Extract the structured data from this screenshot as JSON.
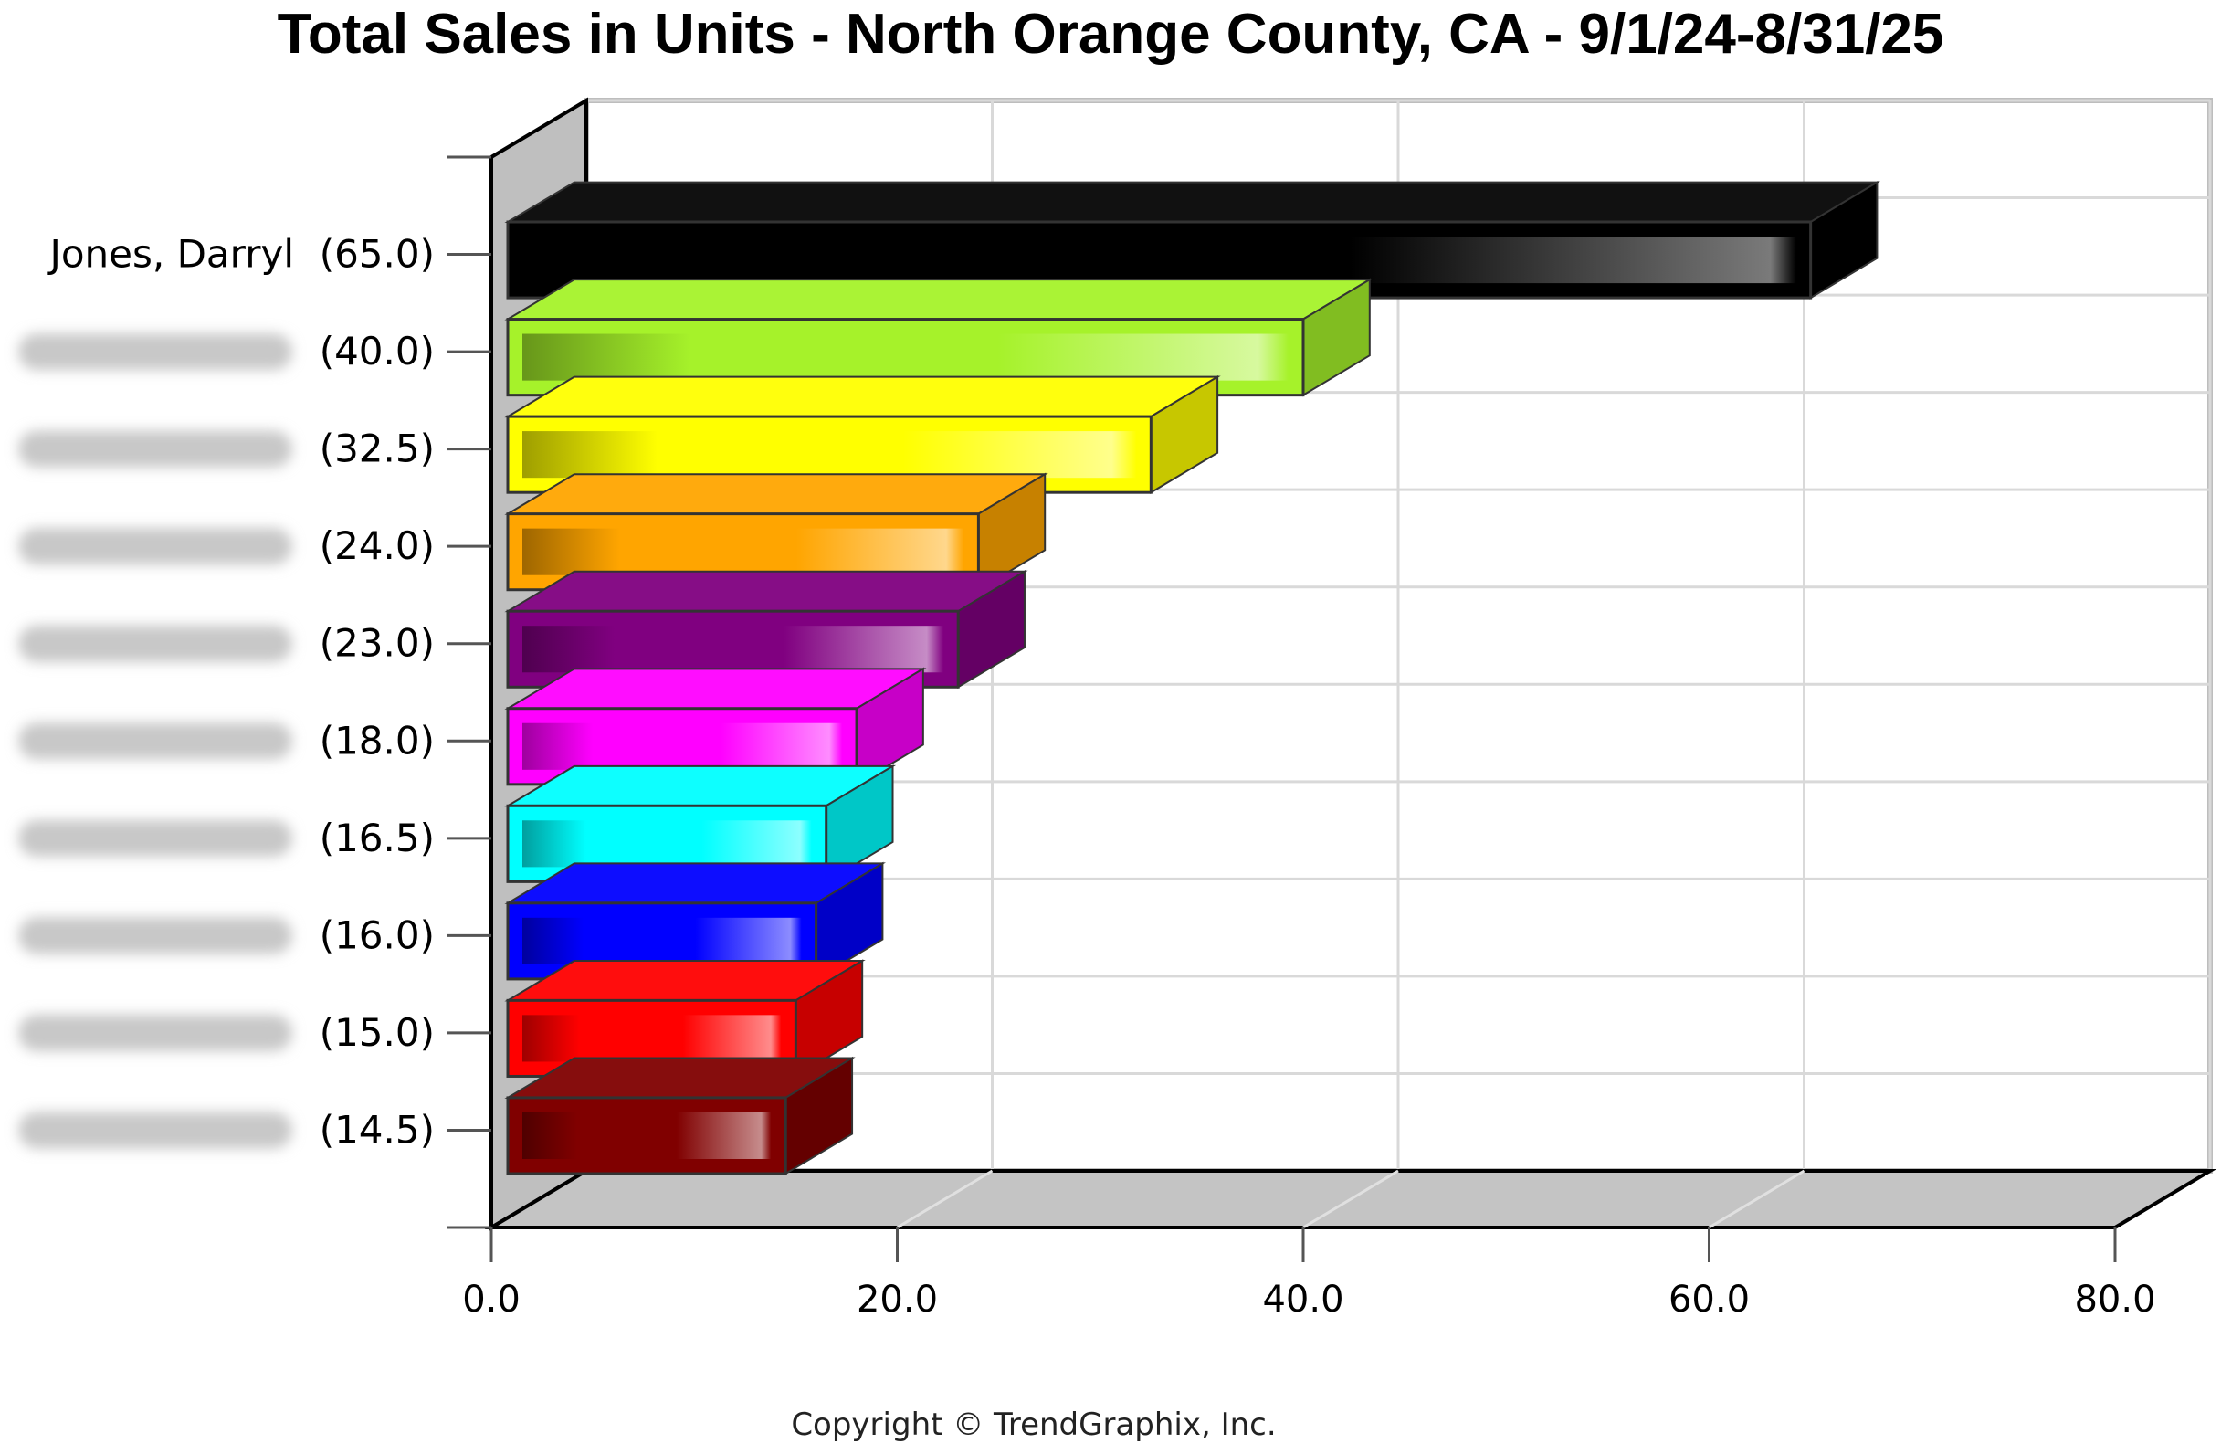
{
  "chart_data": {
    "type": "bar",
    "orientation": "horizontal",
    "style": "3d",
    "title": "Total Sales in Units - North Orange County, CA - 9/1/24-8/31/25",
    "categories": [
      {
        "name": "Jones, Darryl",
        "value_label": "(65.0)",
        "blurred": false
      },
      {
        "name": "",
        "value_label": "(40.0)",
        "blurred": true
      },
      {
        "name": "",
        "value_label": "(32.5)",
        "blurred": true
      },
      {
        "name": "",
        "value_label": "(24.0)",
        "blurred": true
      },
      {
        "name": "",
        "value_label": "(23.0)",
        "blurred": true
      },
      {
        "name": "",
        "value_label": "(18.0)",
        "blurred": true
      },
      {
        "name": "",
        "value_label": "(16.5)",
        "blurred": true
      },
      {
        "name": "",
        "value_label": "(16.0)",
        "blurred": true
      },
      {
        "name": "",
        "value_label": "(15.0)",
        "blurred": true
      },
      {
        "name": "",
        "value_label": "(14.5)",
        "blurred": true
      }
    ],
    "values": [
      65.0,
      40.0,
      32.5,
      24.0,
      23.0,
      18.0,
      16.5,
      16.0,
      15.0,
      14.5
    ],
    "colors": [
      "#000000",
      "#a6f22a",
      "#ffff00",
      "#ffa500",
      "#800080",
      "#ff00ff",
      "#00ffff",
      "#0000ff",
      "#ff0000",
      "#800000"
    ],
    "xlim": [
      0,
      80
    ],
    "xticks": [
      "0.0",
      "20.0",
      "40.0",
      "60.0",
      "80.0"
    ],
    "xtick_values": [
      0,
      20,
      40,
      60,
      80
    ],
    "grid": true,
    "legend": "none"
  },
  "copyright": "Copyright © TrendGraphix, Inc."
}
